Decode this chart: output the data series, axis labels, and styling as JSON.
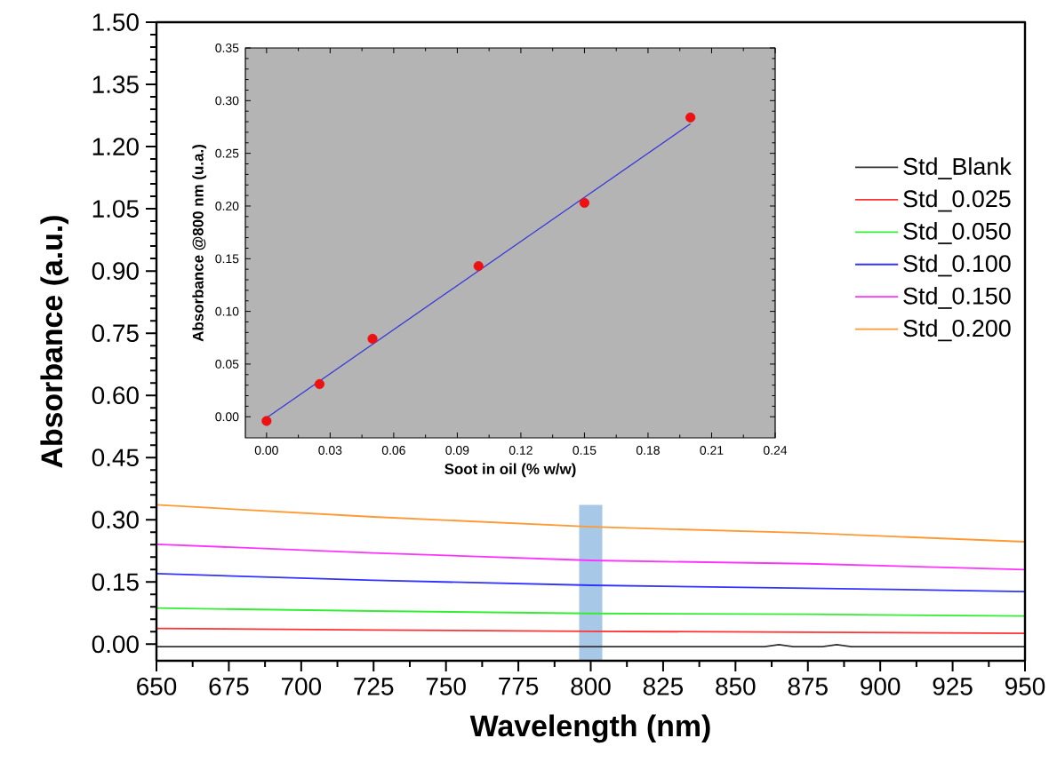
{
  "chart_data": [
    {
      "type": "line",
      "xlabel": "Wavelength (nm)",
      "ylabel": "Absorbance (a.u.)",
      "x": [
        650,
        725,
        800,
        875,
        950
      ],
      "xlim": [
        650,
        950
      ],
      "ylim": [
        -0.04,
        1.5
      ],
      "xticks": [
        650,
        675,
        700,
        725,
        750,
        775,
        800,
        825,
        850,
        875,
        900,
        925,
        950
      ],
      "yticks": [
        {
          "value": 0,
          "label": "0.00"
        },
        {
          "value": 0.15,
          "label": "0.15"
        },
        {
          "value": 0.3,
          "label": "0.30"
        },
        {
          "value": 0.45,
          "label": "0.45"
        },
        {
          "value": 0.6,
          "label": "0.60"
        },
        {
          "value": 0.75,
          "label": "0.75"
        },
        {
          "value": 0.9,
          "label": "0.90"
        },
        {
          "value": 1.05,
          "label": "1.05"
        },
        {
          "value": 1.2,
          "label": "1.20"
        },
        {
          "value": 1.35,
          "label": "1.35"
        },
        {
          "value": 1.5,
          "label": "1.50"
        }
      ],
      "legend": "top right",
      "bands": [
        {
          "axis": "x",
          "from": 796,
          "to": 804,
          "color": "#a8c8e8"
        }
      ],
      "series": [
        {
          "name": "Std_Blank",
          "color": "#333333",
          "x": [
            650,
            860,
            865,
            870,
            880,
            885,
            890,
            950
          ],
          "values": [
            -0.006,
            -0.006,
            -0.001,
            -0.006,
            -0.006,
            -0.001,
            -0.006,
            -0.006
          ]
        },
        {
          "name": "Std_0.025",
          "color": "#ff3333",
          "values": [
            0.038,
            0.034,
            0.031,
            0.029,
            0.026
          ]
        },
        {
          "name": "Std_0.050",
          "color": "#33ee33",
          "values": [
            0.087,
            0.08,
            0.074,
            0.072,
            0.068
          ]
        },
        {
          "name": "Std_0.100",
          "color": "#3333ff",
          "values": [
            0.17,
            0.154,
            0.142,
            0.135,
            0.127
          ]
        },
        {
          "name": "Std_0.150",
          "color": "#ff33ff",
          "values": [
            0.241,
            0.22,
            0.202,
            0.194,
            0.18
          ]
        },
        {
          "name": "Std_0.200",
          "color": "#ff9933",
          "values": [
            0.336,
            0.307,
            0.283,
            0.268,
            0.247
          ]
        }
      ]
    },
    {
      "type": "scatter",
      "xlabel": "Soot in oil (% w/w)",
      "ylabel": "Absorbance @800 nm (u.a.)",
      "x": [
        0,
        0.025,
        0.05,
        0.1,
        0.15,
        0.2
      ],
      "xlim": [
        -0.01,
        0.24
      ],
      "ylim": [
        -0.02,
        0.35
      ],
      "xticks": [
        {
          "value": 0,
          "label": "0.00"
        },
        {
          "value": 0.03,
          "label": "0.03"
        },
        {
          "value": 0.06,
          "label": "0.06"
        },
        {
          "value": 0.09,
          "label": "0.09"
        },
        {
          "value": 0.12,
          "label": "0.12"
        },
        {
          "value": 0.15,
          "label": "0.15"
        },
        {
          "value": 0.18,
          "label": "0.18"
        },
        {
          "value": 0.21,
          "label": "0.21"
        },
        {
          "value": 0.24,
          "label": "0.24"
        }
      ],
      "yticks": [
        {
          "value": 0,
          "label": "0.00"
        },
        {
          "value": 0.05,
          "label": "0.05"
        },
        {
          "value": 0.1,
          "label": "0.10"
        },
        {
          "value": 0.15,
          "label": "0.15"
        },
        {
          "value": 0.2,
          "label": "0.20"
        },
        {
          "value": 0.25,
          "label": "0.25"
        },
        {
          "value": 0.3,
          "label": "0.30"
        },
        {
          "value": 0.35,
          "label": "0.35"
        }
      ],
      "series": [
        {
          "type": "line",
          "color": "#3333dd",
          "x": [
            0,
            0.2
          ],
          "values": [
            -0.001,
            0.278
          ]
        },
        {
          "color": "#ee1111",
          "marker": "circle",
          "values": [
            -0.004,
            0.031,
            0.074,
            0.143,
            0.203,
            0.284
          ]
        }
      ]
    }
  ]
}
